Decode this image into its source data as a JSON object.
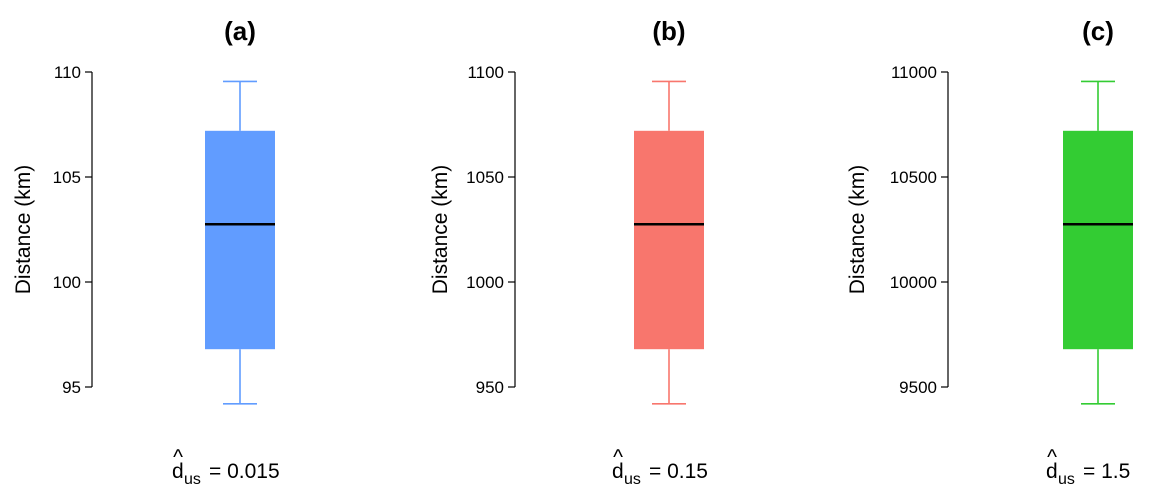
{
  "chart_data": [
    {
      "type": "box",
      "title": "(a)",
      "ylabel": "Distance (km)",
      "ylim": [
        94,
        110
      ],
      "yticks": [
        95,
        100,
        105,
        110
      ],
      "ytick_labels": [
        "95",
        "100",
        "105",
        "110"
      ],
      "color": "#619cff",
      "box": {
        "whisker_low": 94.2,
        "q1": 96.8,
        "median": 102.75,
        "q3": 107.2,
        "whisker_high": 109.55
      },
      "footer": {
        "symbol": "d",
        "hat": "^",
        "subscript": "us",
        "text": "= 0.015"
      }
    },
    {
      "type": "box",
      "title": "(b)",
      "ylabel": "Distance (km)",
      "ylim": [
        940,
        1100
      ],
      "yticks": [
        950,
        1000,
        1050,
        1100
      ],
      "ytick_labels": [
        "950",
        "1000",
        "1050",
        "1100"
      ],
      "color": "#f8766d",
      "box": {
        "whisker_low": 942,
        "q1": 968,
        "median": 1027.5,
        "q3": 1072,
        "whisker_high": 1095.5
      },
      "footer": {
        "symbol": "d",
        "hat": "^",
        "subscript": "us",
        "text": "= 0.15"
      }
    },
    {
      "type": "box",
      "title": "(c)",
      "ylabel": "Distance (km)",
      "ylim": [
        9400,
        11000
      ],
      "yticks": [
        9500,
        10000,
        10500,
        11000
      ],
      "ytick_labels": [
        "9500",
        "10000",
        "10500",
        "11000"
      ],
      "color": "#33cc33",
      "box": {
        "whisker_low": 9420,
        "q1": 9680,
        "median": 10275,
        "q3": 10720,
        "whisker_high": 10955
      },
      "footer": {
        "symbol": "d",
        "hat": "^",
        "subscript": "us",
        "text": "= 1.5"
      }
    }
  ]
}
